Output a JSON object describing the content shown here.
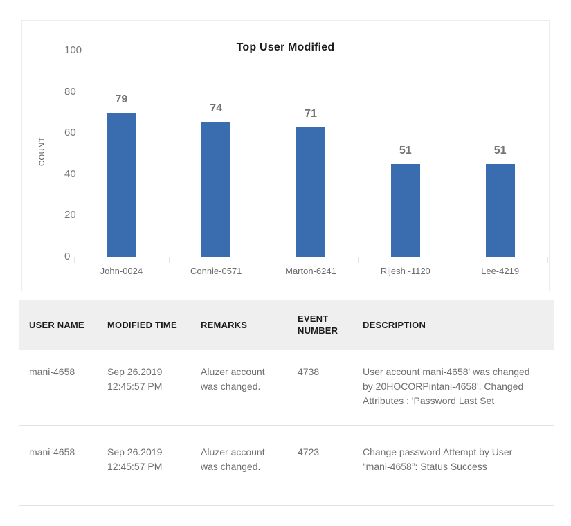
{
  "chart_data": {
    "type": "bar",
    "title": "Top User Modified",
    "xlabel": "",
    "ylabel": "COUNT",
    "categories": [
      "John-0024",
      "Connie-0571",
      "Marton-6241",
      "Rijesh -1120",
      "Lee-4219"
    ],
    "values": [
      79,
      74,
      71,
      51,
      51
    ],
    "ylim": [
      0,
      100
    ],
    "yticks": [
      0,
      20,
      40,
      60,
      80,
      100
    ],
    "grid": false,
    "legend": "none",
    "bar_color": "#3a6cb0",
    "value_labels_shown": true
  },
  "table": {
    "headers": [
      "USER NAME",
      "MODIFIED TIME",
      "REMARKS",
      "EVENT NUMBER",
      "DESCRIPTION"
    ],
    "rows": [
      [
        "mani-4658",
        "Sep 26.2019 12:45:57 PM",
        "Aluzer account was changed.",
        "4738",
        "User account mani-4658' was changed by 20HOCORPintani-4658'. Changed Attributes : 'Password Last Set"
      ],
      [
        "mani-4658",
        "Sep 26.2019 12:45:57 PM",
        "Aluzer account was changed.",
        "4723",
        "Change password Attempt by User “mani-4658”: Status Success"
      ]
    ]
  }
}
